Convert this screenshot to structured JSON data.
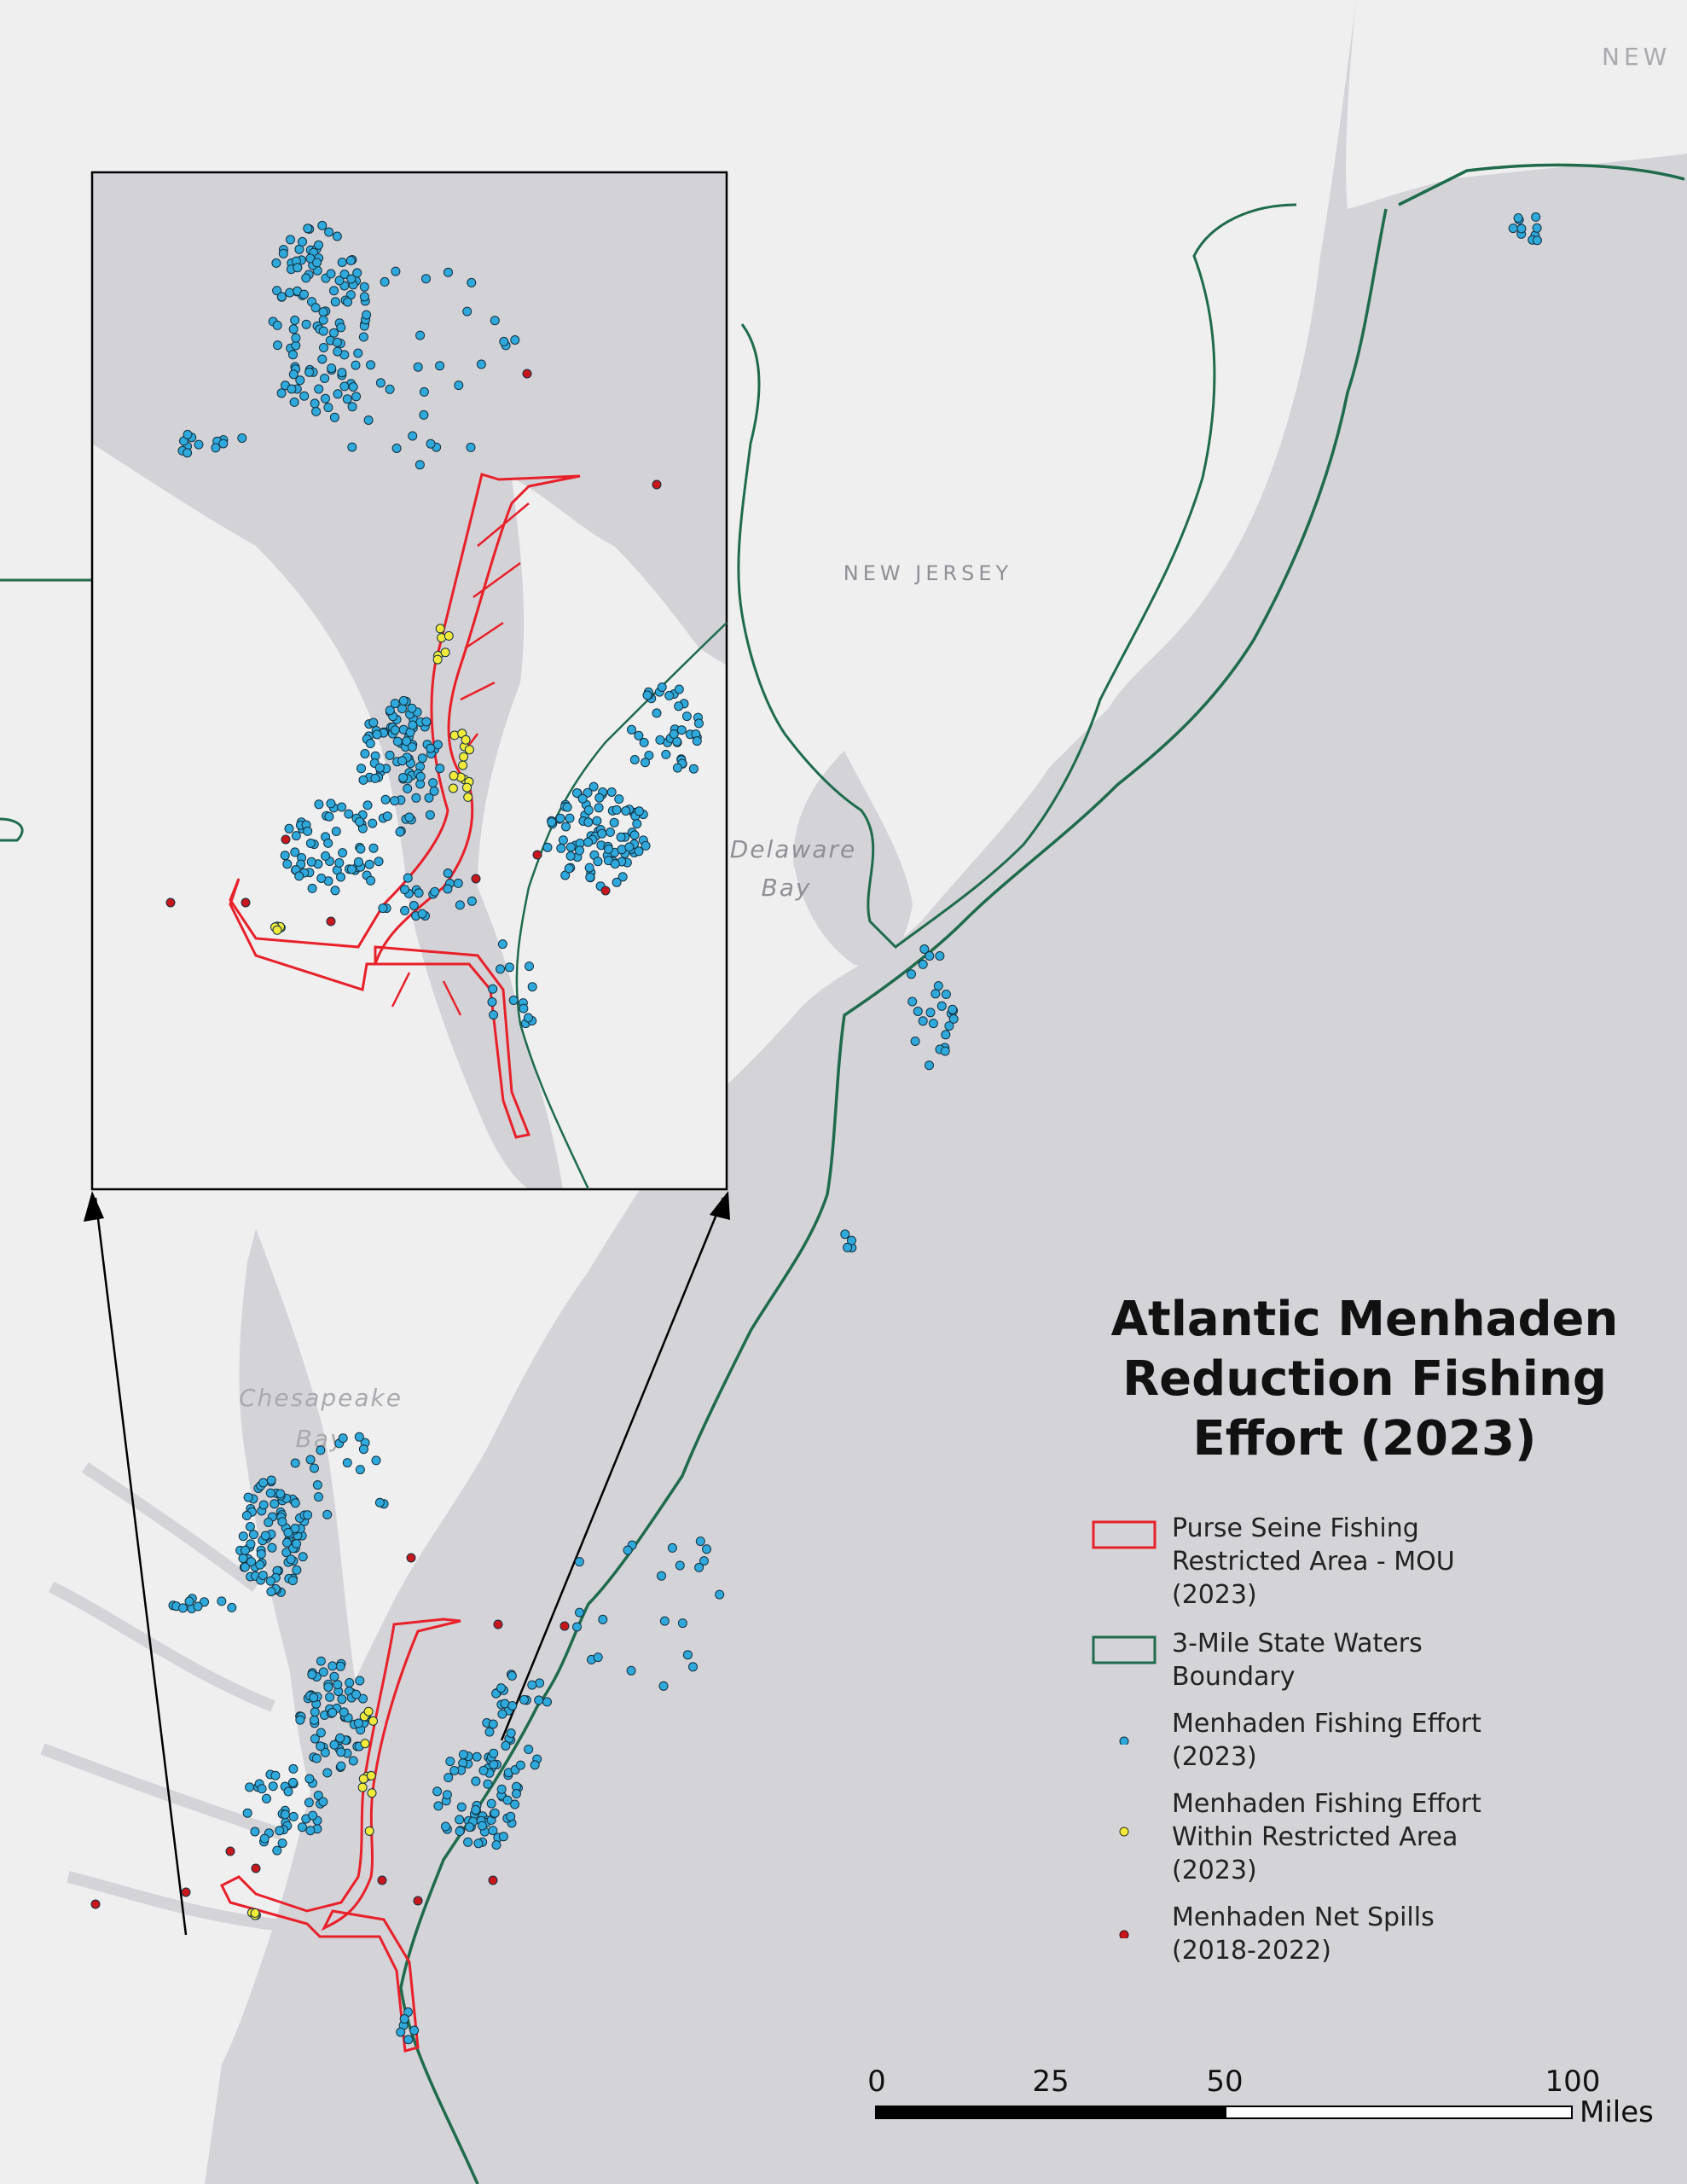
{
  "title": "Atlantic Menhaden Reduction Fishing Effort (2023)",
  "map_labels": {
    "new_jersey": "NEW JERSEY",
    "new_york_partial": "NEW",
    "delaware_bay_1": "Delaware",
    "delaware_bay_2": "Bay",
    "chesapeake_bay_1": "Chesapeake",
    "chesapeake_bay_2": "Bay"
  },
  "legend": [
    {
      "symbol": "red-outline-rect",
      "label": "Purse Seine Fishing Restricted Area - MOU (2023)",
      "color": "#e8202a"
    },
    {
      "symbol": "green-outline-rect",
      "label": "3-Mile State Waters Boundary",
      "color": "#1f6b4c"
    },
    {
      "symbol": "blue-dot",
      "label": "Menhaden Fishing Effort (2023)",
      "color": "#2fa9dc"
    },
    {
      "symbol": "yellow-dot",
      "label": "Menhaden Fishing Effort Within Restricted Area (2023)",
      "color": "#f2ea3a"
    },
    {
      "symbol": "red-dot",
      "label": "Menhaden Net Spills (2018-2022)",
      "color": "#c8161d"
    }
  ],
  "scale_bar": {
    "ticks": [
      "0",
      "25",
      "50",
      "100"
    ],
    "unit": "Miles"
  },
  "colors": {
    "ocean": "#d4d3d8",
    "land": "#efeff0",
    "inset_bg": "#d3d2d7",
    "restricted_area": "#e8202a",
    "state_waters": "#1f6b4c",
    "effort": "#2fa9dc",
    "effort_restricted": "#f2ea3a",
    "net_spill": "#c8161d"
  }
}
